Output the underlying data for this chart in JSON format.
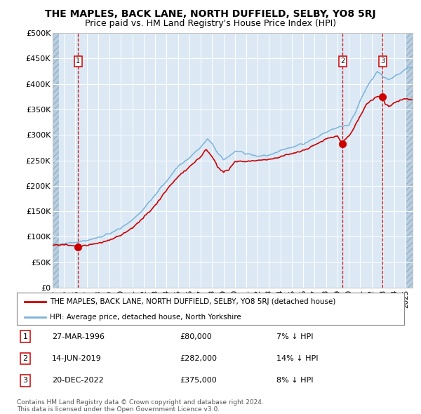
{
  "title": "THE MAPLES, BACK LANE, NORTH DUFFIELD, SELBY, YO8 5RJ",
  "subtitle": "Price paid vs. HM Land Registry's House Price Index (HPI)",
  "title_fontsize": 10,
  "subtitle_fontsize": 9,
  "background_color": "#ffffff",
  "plot_bg_color": "#dce9f5",
  "hpi_color": "#7ab3d9",
  "price_color": "#cc0000",
  "marker_color": "#cc0000",
  "vline_color": "#cc0000",
  "grid_color": "#ffffff",
  "ylim": [
    0,
    500000
  ],
  "yticks": [
    0,
    50000,
    100000,
    150000,
    200000,
    250000,
    300000,
    350000,
    400000,
    450000,
    500000
  ],
  "ytick_labels": [
    "£0",
    "£50K",
    "£100K",
    "£150K",
    "£200K",
    "£250K",
    "£300K",
    "£350K",
    "£400K",
    "£450K",
    "£500K"
  ],
  "xlim_start": 1994.0,
  "xlim_end": 2025.6,
  "xtick_years": [
    1994,
    1995,
    1996,
    1997,
    1998,
    1999,
    2000,
    2001,
    2002,
    2003,
    2004,
    2005,
    2006,
    2007,
    2008,
    2009,
    2010,
    2011,
    2012,
    2013,
    2014,
    2015,
    2016,
    2017,
    2018,
    2019,
    2020,
    2021,
    2022,
    2023,
    2024,
    2025
  ],
  "sales": [
    {
      "label": "1",
      "date_num": 1996.23,
      "price": 80000,
      "pct": "7%",
      "date_str": "27-MAR-1996"
    },
    {
      "label": "2",
      "date_num": 2019.45,
      "price": 282000,
      "pct": "14%",
      "date_str": "14-JUN-2019"
    },
    {
      "label": "3",
      "date_num": 2022.97,
      "price": 375000,
      "pct": "8%",
      "date_str": "20-DEC-2022"
    }
  ],
  "legend_label_red": "THE MAPLES, BACK LANE, NORTH DUFFIELD, SELBY, YO8 5RJ (detached house)",
  "legend_label_blue": "HPI: Average price, detached house, North Yorkshire",
  "footer_line1": "Contains HM Land Registry data © Crown copyright and database right 2024.",
  "footer_line2": "This data is licensed under the Open Government Licence v3.0."
}
